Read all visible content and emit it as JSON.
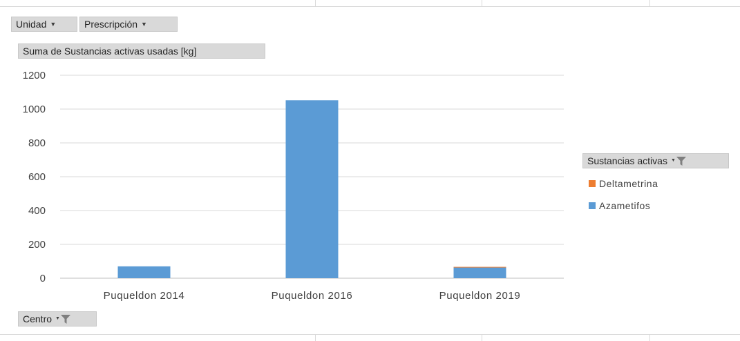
{
  "filters": {
    "unidad_label": "Unidad",
    "prescripcion_label": "Prescripción",
    "value_field_label": "Suma de Sustancias activas usadas [kg]",
    "axis_field_label": "Centro"
  },
  "legend": {
    "title": "Sustancias activas",
    "items": [
      {
        "label": "Deltametrina",
        "color": "#ed7d31"
      },
      {
        "label": "Azametifos",
        "color": "#5b9bd5"
      }
    ]
  },
  "chart_data": {
    "type": "bar",
    "stacked": true,
    "categories": [
      "Puqueldon 2014",
      "Puqueldon 2016",
      "Puqueldon 2019"
    ],
    "series": [
      {
        "name": "Azametifos",
        "color": "#5b9bd5",
        "values": [
          70,
          1052,
          63
        ]
      },
      {
        "name": "Deltametrina",
        "color": "#ed7d31",
        "values": [
          0,
          0,
          4
        ]
      }
    ],
    "ylim": [
      0,
      1200
    ],
    "yticks": [
      "0",
      "200",
      "400",
      "600",
      "800",
      "1000",
      "1200"
    ],
    "grid": true,
    "legend_position": "right"
  }
}
